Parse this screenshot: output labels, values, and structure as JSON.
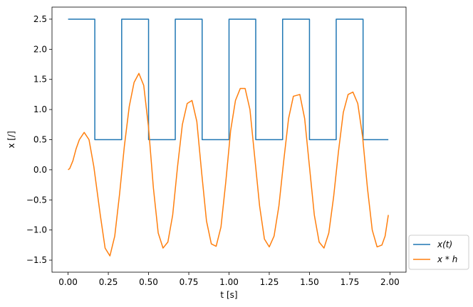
{
  "chart_data": {
    "type": "line",
    "xlabel": "t [s]",
    "ylabel": "x [/]",
    "xlim": [
      -0.1,
      2.1
    ],
    "ylim": [
      -1.7,
      2.7
    ],
    "grid": false,
    "legend_position": "outside-bottom-right",
    "x_ticks": [
      0.0,
      0.25,
      0.5,
      0.75,
      1.0,
      1.25,
      1.5,
      1.75,
      2.0
    ],
    "x_tick_labels": [
      "0.00",
      "0.25",
      "0.50",
      "0.75",
      "1.00",
      "1.25",
      "1.50",
      "1.75",
      "2.00"
    ],
    "y_ticks": [
      -1.5,
      -1.0,
      -0.5,
      0.0,
      0.5,
      1.0,
      1.5,
      2.0,
      2.5
    ],
    "y_tick_labels": [
      "−1.5",
      "−1.0",
      "−0.5",
      "0.0",
      "0.5",
      "1.0",
      "1.5",
      "2.0",
      "2.5"
    ],
    "series": [
      {
        "name": "x(t)",
        "color": "#1f77b4",
        "x": [
          0.0,
          0.166,
          0.166,
          0.333,
          0.333,
          0.5,
          0.5,
          0.666,
          0.666,
          0.833,
          0.833,
          1.0,
          1.0,
          1.166,
          1.166,
          1.333,
          1.333,
          1.5,
          1.5,
          1.666,
          1.666,
          1.833,
          1.833,
          1.99
        ],
        "y": [
          2.5,
          2.5,
          0.5,
          0.5,
          2.5,
          2.5,
          0.5,
          0.5,
          2.5,
          2.5,
          0.5,
          0.5,
          2.5,
          2.5,
          0.5,
          0.5,
          2.5,
          2.5,
          0.5,
          0.5,
          2.5,
          2.5,
          0.5,
          0.5
        ]
      },
      {
        "name": "x * h",
        "color": "#ff7f0e",
        "x": [
          0.0,
          0.01,
          0.03,
          0.05,
          0.07,
          0.1,
          0.13,
          0.16,
          0.2,
          0.23,
          0.26,
          0.29,
          0.32,
          0.35,
          0.38,
          0.41,
          0.44,
          0.47,
          0.5,
          0.53,
          0.56,
          0.59,
          0.62,
          0.65,
          0.68,
          0.71,
          0.74,
          0.77,
          0.8,
          0.83,
          0.86,
          0.89,
          0.92,
          0.95,
          0.98,
          1.01,
          1.04,
          1.07,
          1.1,
          1.13,
          1.16,
          1.19,
          1.22,
          1.25,
          1.28,
          1.31,
          1.34,
          1.37,
          1.4,
          1.44,
          1.47,
          1.5,
          1.53,
          1.56,
          1.59,
          1.62,
          1.65,
          1.68,
          1.71,
          1.74,
          1.77,
          1.8,
          1.83,
          1.86,
          1.89,
          1.92,
          1.95,
          1.97,
          1.99
        ],
        "y": [
          0.0,
          0.02,
          0.15,
          0.35,
          0.5,
          0.62,
          0.5,
          0.05,
          -0.75,
          -1.3,
          -1.43,
          -1.1,
          -0.4,
          0.4,
          1.05,
          1.45,
          1.6,
          1.4,
          0.7,
          -0.3,
          -1.05,
          -1.3,
          -1.2,
          -0.75,
          0.05,
          0.75,
          1.1,
          1.15,
          0.8,
          -0.05,
          -0.85,
          -1.23,
          -1.27,
          -0.95,
          -0.2,
          0.65,
          1.15,
          1.35,
          1.35,
          1.0,
          0.2,
          -0.6,
          -1.15,
          -1.28,
          -1.1,
          -0.6,
          0.15,
          0.85,
          1.22,
          1.25,
          0.85,
          0.05,
          -0.75,
          -1.2,
          -1.3,
          -1.05,
          -0.45,
          0.3,
          0.95,
          1.25,
          1.29,
          1.1,
          0.55,
          -0.3,
          -1.0,
          -1.28,
          -1.25,
          -1.1,
          -0.75
        ]
      }
    ]
  }
}
